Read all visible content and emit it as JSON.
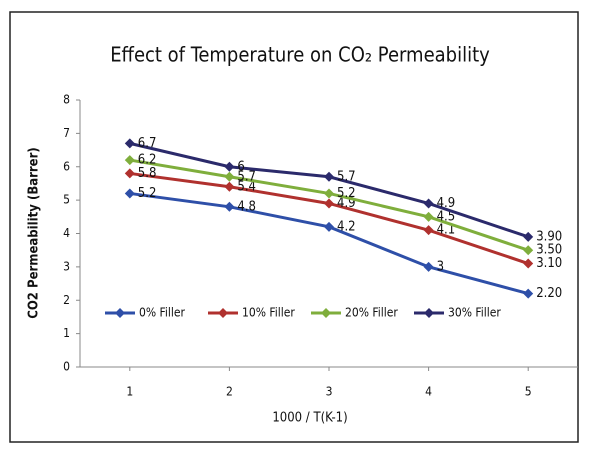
{
  "chart_data": {
    "type": "line",
    "title": "Effect of Temperature on CO₂ Permeability",
    "xlabel": "1000 / T(K-1)",
    "ylabel": "CO2 Permeability (Barrer)",
    "x": [
      1,
      2,
      3,
      4,
      5
    ],
    "xlim": [
      0.5,
      5.5
    ],
    "xticks": [
      1,
      2,
      3,
      4,
      5
    ],
    "ylim": [
      0,
      8
    ],
    "yticks": [
      0,
      1,
      2,
      3,
      4,
      5,
      6,
      7,
      8
    ],
    "legend": "bottom-left",
    "series": [
      {
        "name": "0% Filler",
        "color": "#2e4fa8",
        "values": [
          5.2,
          4.8,
          4.2,
          3,
          2.2
        ],
        "value_labels": [
          "5.2",
          "4.8",
          "4.2",
          "3",
          "2.20"
        ]
      },
      {
        "name": "10% Filler",
        "color": "#b0312e",
        "values": [
          5.8,
          5.4,
          4.9,
          4.1,
          3.1
        ],
        "value_labels": [
          "5.8",
          "5.4",
          "4.9",
          "4.1",
          "3.10"
        ]
      },
      {
        "name": "20% Filler",
        "color": "#7fae3c",
        "values": [
          6.2,
          5.7,
          5.2,
          4.5,
          3.5
        ],
        "value_labels": [
          "6.2",
          "5.7",
          "5.2",
          "4.5",
          "3.50"
        ]
      },
      {
        "name": "30% Filler",
        "color": "#2b2a6b",
        "values": [
          6.7,
          6,
          5.7,
          4.9,
          3.9
        ],
        "value_labels": [
          "6.7",
          "6",
          "5.7",
          "4.9",
          "3.90"
        ]
      }
    ]
  }
}
